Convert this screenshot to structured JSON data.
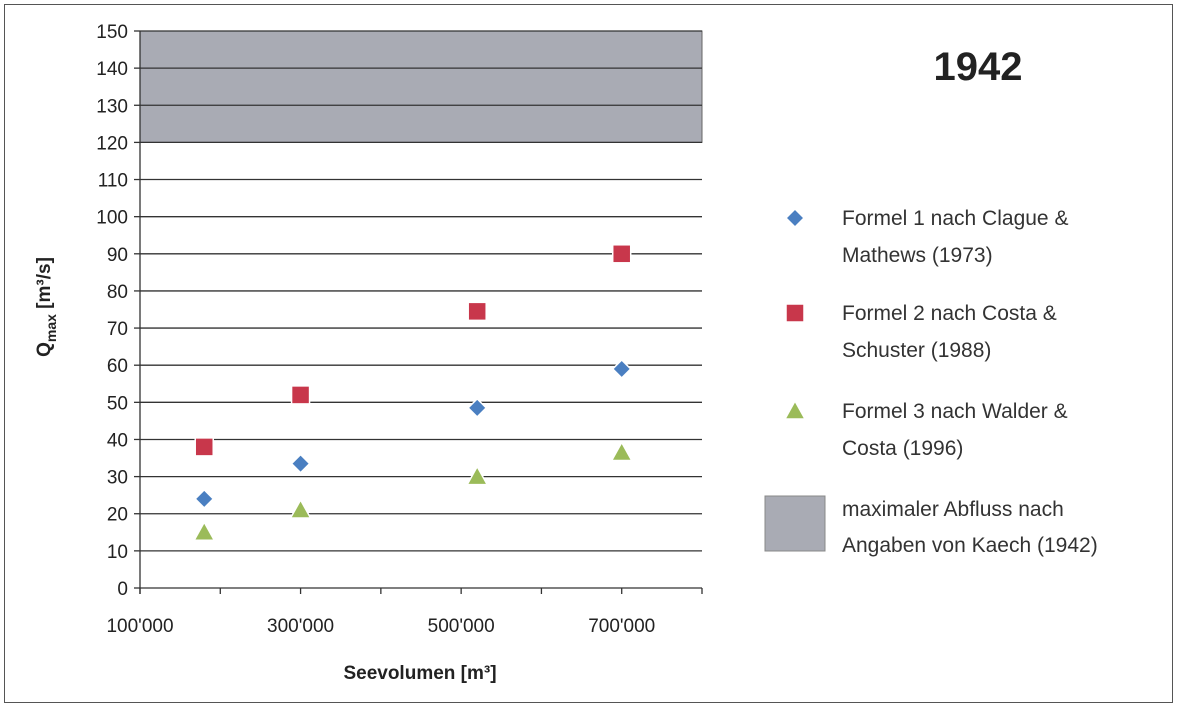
{
  "chart_data": {
    "type": "scatter",
    "title": "1942",
    "xlabel": "Seevolumen [m³]",
    "ylabel": {
      "base": "Q",
      "sub": "max",
      "unit": " [m³/s]"
    },
    "xlim": [
      100000,
      800000
    ],
    "ylim": [
      0,
      150
    ],
    "x_ticks": [
      100000,
      300000,
      500000,
      700000
    ],
    "x_tick_labels": [
      "100'000",
      "300'000",
      "500'000",
      "700'000"
    ],
    "y_ticks": [
      0,
      10,
      20,
      30,
      40,
      50,
      60,
      70,
      80,
      90,
      100,
      110,
      120,
      130,
      140,
      150
    ],
    "y_tick_labels": [
      "0",
      "10",
      "20",
      "30",
      "40",
      "50",
      "60",
      "70",
      "80",
      "90",
      "100",
      "110",
      "120",
      "130",
      "140",
      "150"
    ],
    "grid": "horizontal",
    "legend_position": "right",
    "series": [
      {
        "name": "Formel 1 nach Clague & Mathews (1973)",
        "legend_lines": [
          "Formel 1 nach Clague &",
          "Mathews (1973)"
        ],
        "marker": "diamond",
        "color": "#4a7fc1",
        "points": [
          [
            180000,
            24
          ],
          [
            300000,
            33.5
          ],
          [
            520000,
            48.5
          ],
          [
            700000,
            59
          ]
        ]
      },
      {
        "name": "Formel 2 nach Costa & Schuster (1988)",
        "legend_lines": [
          "Formel 2 nach Costa &",
          "Schuster (1988)"
        ],
        "marker": "square",
        "color": "#c8374b",
        "points": [
          [
            180000,
            38
          ],
          [
            300000,
            52
          ],
          [
            520000,
            74.5
          ],
          [
            700000,
            90
          ]
        ]
      },
      {
        "name": "Formel 3 nach Walder & Costa (1996)",
        "legend_lines": [
          "Formel 3 nach Walder &",
          "Costa (1996)"
        ],
        "marker": "triangle",
        "color": "#9bbb59",
        "points": [
          [
            180000,
            15
          ],
          [
            300000,
            21
          ],
          [
            520000,
            30
          ],
          [
            700000,
            36.5
          ]
        ]
      }
    ],
    "band": {
      "name": "maximaler Abfluss nach Angaben von Kaech (1942)",
      "legend_lines": [
        "maximaler Abfluss nach",
        "Angaben von Kaech (1942)"
      ],
      "y_from": 120,
      "y_to": 150,
      "color": "#a9abb4"
    }
  }
}
